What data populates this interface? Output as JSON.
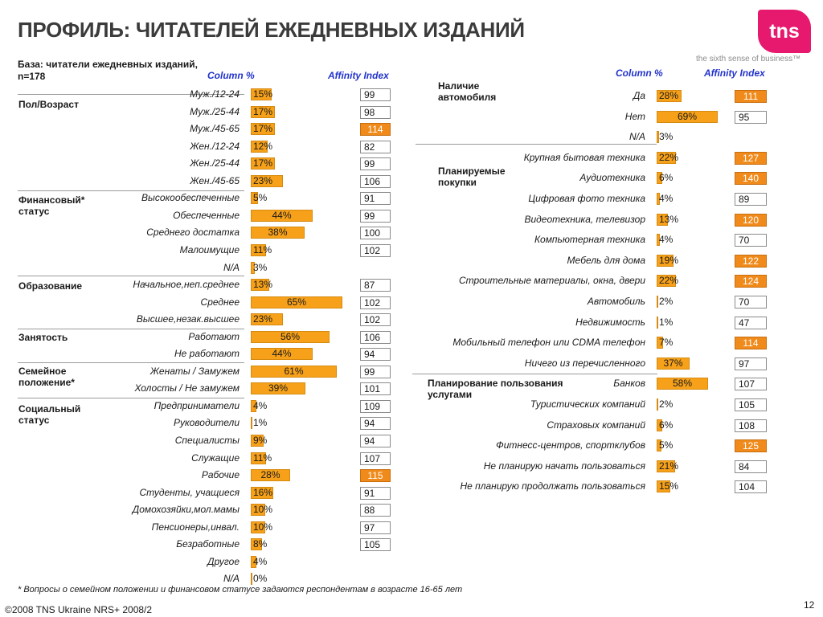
{
  "title": "ПРОФИЛЬ: ЧИТАТЕЛЕЙ ЕЖЕДНЕВНЫХ ИЗДАНИЙ",
  "logo": "tns",
  "tagline": "the sixth sense of business™",
  "base_line1": "База: читатели ежедневных изданий,",
  "base_line2": "n=178",
  "headers": {
    "column_pct": "Column %",
    "affinity_index": "Affinity Index"
  },
  "colors": {
    "bar": "#f7a11a",
    "index_high": "#f08a1a",
    "header": "#2233cc",
    "logo": "#e6196e"
  },
  "left": {
    "groups": [
      {
        "label": "Пол/Возраст"
      },
      {
        "label": "Финансовый* статус"
      },
      {
        "label": "Образование"
      },
      {
        "label": "Занятость"
      },
      {
        "label": "Семейное положение*"
      },
      {
        "label": "Социальный статус"
      }
    ],
    "rows": [
      {
        "label": "Муж./12-24",
        "value": 15,
        "text": "15%",
        "index": "99",
        "high": false
      },
      {
        "label": "Муж./25-44",
        "value": 17,
        "text": "17%",
        "index": "98",
        "high": false
      },
      {
        "label": "Муж./45-65",
        "value": 17,
        "text": "17%",
        "index": "114",
        "high": true
      },
      {
        "label": "Жен./12-24",
        "value": 12,
        "text": "12%",
        "index": "82",
        "high": false
      },
      {
        "label": "Жен./25-44",
        "value": 17,
        "text": "17%",
        "index": "99",
        "high": false
      },
      {
        "label": "Жен./45-65",
        "value": 23,
        "text": "23%",
        "index": "106",
        "high": false
      },
      {
        "label": "Высокообеспеченные",
        "value": 5,
        "text": "5%",
        "index": "91",
        "high": false
      },
      {
        "label": "Обеспеченные",
        "value": 44,
        "text": "44%",
        "index": "99",
        "high": false
      },
      {
        "label": "Среднего достатка",
        "value": 38,
        "text": "38%",
        "index": "100",
        "high": false
      },
      {
        "label": "Малоимущие",
        "value": 11,
        "text": "11%",
        "index": "102",
        "high": false
      },
      {
        "label": "N/A",
        "value": 3,
        "text": "3%",
        "index": "",
        "high": false
      },
      {
        "label": "Начальное,неп.среднее",
        "value": 13,
        "text": "13%",
        "index": "87",
        "high": false
      },
      {
        "label": "Среднее",
        "value": 65,
        "text": "65%",
        "index": "102",
        "high": false
      },
      {
        "label": "Высшее,незак.высшее",
        "value": 23,
        "text": "23%",
        "index": "102",
        "high": false
      },
      {
        "label": "Работают",
        "value": 56,
        "text": "56%",
        "index": "106",
        "high": false
      },
      {
        "label": "Не работают",
        "value": 44,
        "text": "44%",
        "index": "94",
        "high": false
      },
      {
        "label": "Женаты / Замужем",
        "value": 61,
        "text": "61%",
        "index": "99",
        "high": false
      },
      {
        "label": "Холосты / Не замужем",
        "value": 39,
        "text": "39%",
        "index": "101",
        "high": false
      },
      {
        "label": "Предприниматели",
        "value": 4,
        "text": "4%",
        "index": "109",
        "high": false
      },
      {
        "label": "Руководители",
        "value": 1,
        "text": "1%",
        "index": "94",
        "high": false
      },
      {
        "label": "Специалисты",
        "value": 9,
        "text": "9%",
        "index": "94",
        "high": false
      },
      {
        "label": "Служащие",
        "value": 11,
        "text": "11%",
        "index": "107",
        "high": false
      },
      {
        "label": "Рабочие",
        "value": 28,
        "text": "28%",
        "index": "115",
        "high": true
      },
      {
        "label": "Студенты, учащиеся",
        "value": 16,
        "text": "16%",
        "index": "91",
        "high": false
      },
      {
        "label": "Домохозяйки,мол.мамы",
        "value": 10,
        "text": "10%",
        "index": "88",
        "high": false
      },
      {
        "label": "Пенсионеры,инвал.",
        "value": 10,
        "text": "10%",
        "index": "97",
        "high": false
      },
      {
        "label": "Безработные",
        "value": 8,
        "text": "8%",
        "index": "105",
        "high": false
      },
      {
        "label": "Другое",
        "value": 4,
        "text": "4%",
        "index": "",
        "high": false
      },
      {
        "label": "N/A",
        "value": 0,
        "text": "0%",
        "index": "",
        "high": false
      }
    ]
  },
  "right": {
    "groups": [
      {
        "label": "Наличие автомобиля"
      },
      {
        "label": "Планируемые покупки"
      },
      {
        "label": "Планирование пользования услугами"
      }
    ],
    "rows": [
      {
        "label": "Да",
        "value": 28,
        "text": "28%",
        "index": "111",
        "high": true
      },
      {
        "label": "Нет",
        "value": 69,
        "text": "69%",
        "index": "95",
        "high": false
      },
      {
        "label": "N/A",
        "value": 3,
        "text": "3%",
        "index": "",
        "high": false
      },
      {
        "label": "Крупная бытовая техника",
        "value": 22,
        "text": "22%",
        "index": "127",
        "high": true
      },
      {
        "label": "Аудиотехника",
        "value": 6,
        "text": "6%",
        "index": "140",
        "high": true
      },
      {
        "label": "Цифровая фото техника",
        "value": 4,
        "text": "4%",
        "index": "89",
        "high": false
      },
      {
        "label": "Видеотехника, телевизор",
        "value": 13,
        "text": "13%",
        "index": "120",
        "high": true
      },
      {
        "label": "Компьютерная техника",
        "value": 4,
        "text": "4%",
        "index": "70",
        "high": false
      },
      {
        "label": "Мебель для дома",
        "value": 19,
        "text": "19%",
        "index": "122",
        "high": true
      },
      {
        "label": "Строительные материалы, окна, двери",
        "value": 22,
        "text": "22%",
        "index": "124",
        "high": true
      },
      {
        "label": "Автомобиль",
        "value": 2,
        "text": "2%",
        "index": "70",
        "high": false
      },
      {
        "label": "Недвижимость",
        "value": 1,
        "text": "1%",
        "index": "47",
        "high": false
      },
      {
        "label": "Мобильный телефон или CDMA телефон",
        "value": 7,
        "text": "7%",
        "index": "114",
        "high": true
      },
      {
        "label": "Ничего из перечисленного",
        "value": 37,
        "text": "37%",
        "index": "97",
        "high": false
      },
      {
        "label": "Банков",
        "value": 58,
        "text": "58%",
        "index": "107",
        "high": false
      },
      {
        "label": "Туристических компаний",
        "value": 2,
        "text": "2%",
        "index": "105",
        "high": false
      },
      {
        "label": "Страховых компаний",
        "value": 6,
        "text": "6%",
        "index": "108",
        "high": false
      },
      {
        "label": "Фитнесс-центров, спортклубов",
        "value": 5,
        "text": "5%",
        "index": "125",
        "high": true
      },
      {
        "label": "Не планирую начать пользоваться",
        "value": 21,
        "text": "21%",
        "index": "84",
        "high": false
      },
      {
        "label": "Не планирую продолжать пользоваться",
        "value": 15,
        "text": "15%",
        "index": "104",
        "high": false
      }
    ]
  },
  "footnote": "* Вопросы о семейном положении и финансовом статусе задаются респондентам в возрасте 16-65 лет",
  "copyright": "©2008 TNS Ukraine  NRS+ 2008/2",
  "page_number": "12"
}
